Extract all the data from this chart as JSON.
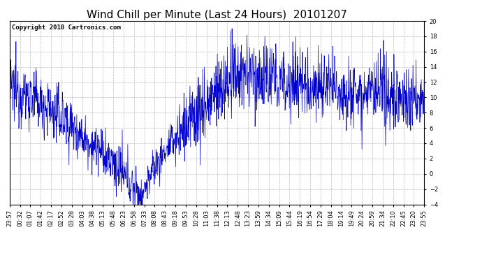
{
  "title": "Wind Chill per Minute (Last 24 Hours)  20101207",
  "copyright_text": "Copyright 2010 Cartronics.com",
  "ylim": [
    -4.0,
    20.0
  ],
  "yticks": [
    -4.0,
    -2.0,
    0.0,
    2.0,
    4.0,
    6.0,
    8.0,
    10.0,
    12.0,
    14.0,
    16.0,
    18.0,
    20.0
  ],
  "line_color": "#0000cc",
  "background_color": "#ffffff",
  "plot_bg_color": "#ffffff",
  "grid_color": "#bbbbbb",
  "title_fontsize": 11,
  "copyright_fontsize": 6.5,
  "tick_label_fontsize": 6,
  "x_tick_labels": [
    "23:57",
    "00:32",
    "01:07",
    "01:42",
    "02:17",
    "02:52",
    "03:28",
    "04:03",
    "04:38",
    "05:13",
    "05:48",
    "06:23",
    "06:58",
    "07:33",
    "08:08",
    "08:43",
    "09:18",
    "09:53",
    "10:28",
    "11:03",
    "11:38",
    "12:13",
    "12:48",
    "13:23",
    "13:59",
    "14:34",
    "15:09",
    "15:44",
    "16:19",
    "16:54",
    "17:29",
    "18:04",
    "19:14",
    "19:49",
    "20:24",
    "20:59",
    "21:34",
    "22:10",
    "22:45",
    "23:20",
    "23:55"
  ]
}
